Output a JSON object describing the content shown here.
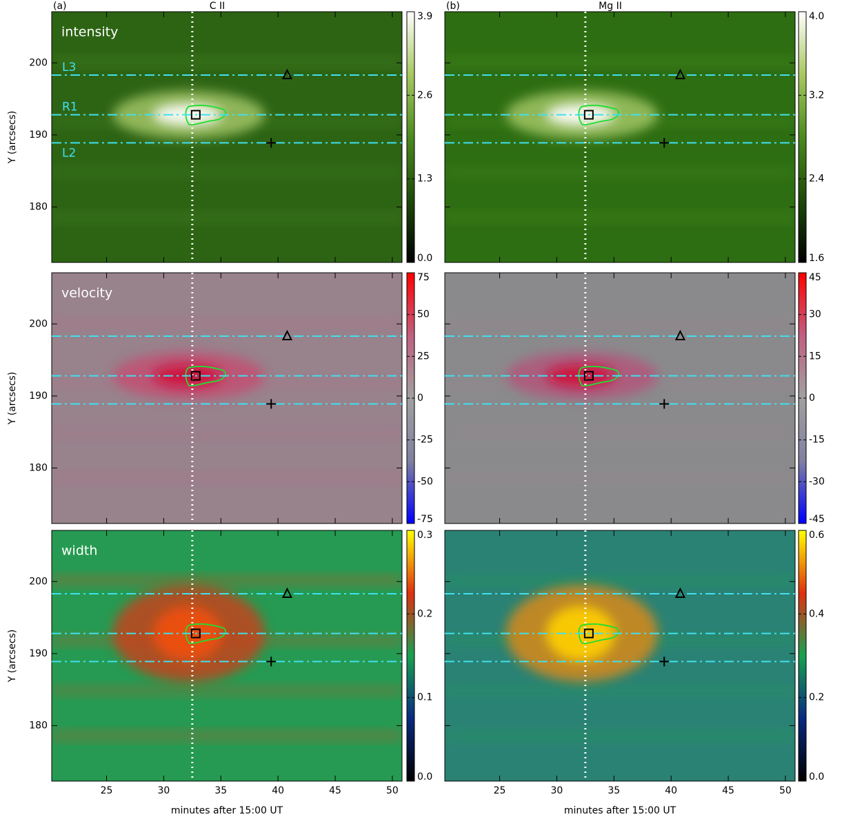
{
  "chart_data": {
    "type": "heatmap",
    "columns": [
      {
        "tag": "(a)",
        "title": "C II"
      },
      {
        "tag": "(b)",
        "title": "Mg II"
      }
    ],
    "x_label": "minutes after 15:00 UT",
    "y_label": "Y (arcsecs)",
    "xlim": [
      20.2,
      50.85
    ],
    "xticks": [
      25,
      30,
      35,
      40,
      45,
      50
    ],
    "ylim": [
      172.3,
      207.1
    ],
    "yticks": [
      180,
      190,
      200
    ],
    "time_line": 32.5,
    "slits": [
      {
        "name": "L3",
        "y": 198.3
      },
      {
        "name": "R1",
        "y": 192.8
      },
      {
        "name": "L2",
        "y": 188.9
      }
    ],
    "markers": [
      {
        "shape": "square",
        "x": 32.8,
        "y": 192.8
      },
      {
        "shape": "triangle",
        "x": 40.8,
        "y": 198.3
      },
      {
        "shape": "plus",
        "x": 39.4,
        "y": 188.9
      }
    ],
    "rows": [
      {
        "name": "intensity",
        "colormap": [
          "#000000",
          "#1e4a0a",
          "#4a8a1e",
          "#a8c860",
          "#ffffff"
        ],
        "panels": [
          {
            "clim": [
              0,
              3.9
            ],
            "cticks": [
              {
                "value": 0,
                "label": "0.0"
              },
              1.3,
              2.6,
              3.9
            ]
          },
          {
            "clim": [
              1.6,
              4
            ],
            "cticks": [
              1.6,
              2.4,
              3.2,
              {
                "value": 4,
                "label": "4.0"
              }
            ]
          }
        ]
      },
      {
        "name": "velocity",
        "colormap": [
          "#0000ff",
          "#8080a0",
          "#a0a0a0",
          "#c06080",
          "#ff0000"
        ],
        "panels": [
          {
            "clim": [
              -75,
              75
            ],
            "cticks": [
              -75,
              -50,
              -25,
              0,
              25,
              50,
              75
            ]
          },
          {
            "clim": [
              -45,
              45
            ],
            "cticks": [
              -45,
              -30,
              -15,
              0,
              15,
              30,
              45
            ]
          }
        ]
      },
      {
        "name": "width",
        "colormap": [
          "#000000",
          "#0a2a80",
          "#18a050",
          "#e03010",
          "#ffff00"
        ],
        "panels": [
          {
            "clim": [
              0,
              0.3
            ],
            "cticks": [
              {
                "value": 0,
                "label": "0.0"
              },
              0.1,
              0.2,
              0.3
            ]
          },
          {
            "clim": [
              0,
              0.6
            ],
            "cticks": [
              {
                "value": 0,
                "label": "0.0"
              },
              0.2,
              0.4,
              0.6
            ]
          }
        ]
      }
    ]
  }
}
